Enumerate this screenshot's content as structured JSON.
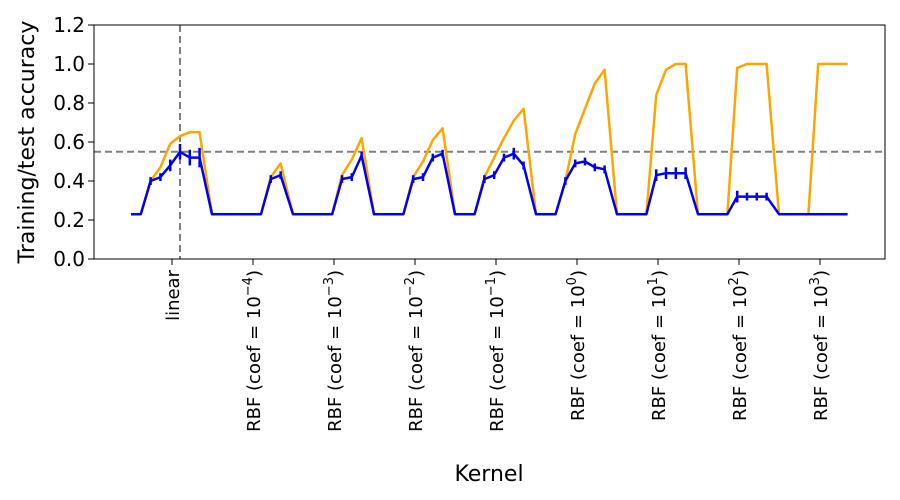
{
  "chart_data": {
    "type": "line",
    "title": "",
    "xlabel": "Kernel",
    "ylabel": "Training/test accuracy",
    "ylim": [
      0.0,
      1.2
    ],
    "yticks": [
      "0.0",
      "0.2",
      "0.4",
      "0.6",
      "0.8",
      "1.0",
      "1.2"
    ],
    "categories": [
      "linear",
      "RBF (coef = 10^-4)",
      "RBF (coef = 10^-3)",
      "RBF (coef = 10^-2)",
      "RBF (coef = 10^-1)",
      "RBF (coef = 10^0)",
      "RBF (coef = 10^1)",
      "RBF (coef = 10^2)",
      "RBF (coef = 10^3)"
    ],
    "category_labels": [
      {
        "base": "linear",
        "exp": ""
      },
      {
        "base": "RBF (coef = 10",
        "exp": "−4",
        "close": ")"
      },
      {
        "base": "RBF (coef = 10",
        "exp": "−3",
        "close": ")"
      },
      {
        "base": "RBF (coef = 10",
        "exp": "−2",
        "close": ")"
      },
      {
        "base": "RBF (coef = 10",
        "exp": "−1",
        "close": ")"
      },
      {
        "base": "RBF (coef = 10",
        "exp": "0",
        "close": ")"
      },
      {
        "base": "RBF (coef = 10",
        "exp": "1",
        "close": ")"
      },
      {
        "base": "RBF (coef = 10",
        "exp": "2",
        "close": ")"
      },
      {
        "base": "RBF (coef = 10",
        "exp": "3",
        "close": ")"
      }
    ],
    "points_per_group": 8,
    "x_range": [
      -1.4,
      8.8
    ],
    "reference_lines": {
      "horizontal_y": 0.55,
      "vertical_x": 0.1
    },
    "series": [
      {
        "color": "#ffa500",
        "values": [
          [
            0.23,
            0.23,
            0.4,
            0.47,
            0.59,
            0.63,
            0.65,
            0.65
          ],
          [
            0.23,
            0.23,
            0.23,
            0.23,
            0.23,
            0.23,
            0.42,
            0.49
          ],
          [
            0.23,
            0.23,
            0.23,
            0.23,
            0.23,
            0.43,
            0.51,
            0.62
          ],
          [
            0.23,
            0.23,
            0.23,
            0.23,
            0.42,
            0.5,
            0.61,
            0.67
          ],
          [
            0.23,
            0.23,
            0.23,
            0.42,
            0.52,
            0.62,
            0.71,
            0.77
          ],
          [
            0.23,
            0.23,
            0.23,
            0.4,
            0.64,
            0.77,
            0.9,
            0.97
          ],
          [
            0.23,
            0.23,
            0.23,
            0.23,
            0.84,
            0.97,
            1.0,
            1.0
          ],
          [
            0.23,
            0.23,
            0.23,
            0.23,
            0.98,
            1.0,
            1.0,
            1.0
          ],
          [
            0.23,
            0.23,
            0.23,
            0.23,
            1.0,
            1.0,
            1.0,
            1.0
          ]
        ]
      },
      {
        "color": "#0000ee",
        "values": [
          [
            0.23,
            0.23,
            0.4,
            0.42,
            0.48,
            0.55,
            0.52,
            0.52
          ],
          [
            0.23,
            0.23,
            0.23,
            0.23,
            0.23,
            0.23,
            0.41,
            0.43
          ],
          [
            0.23,
            0.23,
            0.23,
            0.23,
            0.23,
            0.41,
            0.42,
            0.53
          ],
          [
            0.23,
            0.23,
            0.23,
            0.23,
            0.41,
            0.42,
            0.52,
            0.54
          ],
          [
            0.23,
            0.23,
            0.23,
            0.41,
            0.43,
            0.52,
            0.54,
            0.48
          ],
          [
            0.23,
            0.23,
            0.23,
            0.4,
            0.49,
            0.5,
            0.47,
            0.46
          ],
          [
            0.23,
            0.23,
            0.23,
            0.23,
            0.43,
            0.44,
            0.44,
            0.44
          ],
          [
            0.23,
            0.23,
            0.23,
            0.23,
            0.32,
            0.32,
            0.32,
            0.32
          ],
          [
            0.23,
            0.23,
            0.23,
            0.23,
            0.23,
            0.23,
            0.23,
            0.23
          ]
        ],
        "error": [
          [
            0.0,
            0.0,
            0.02,
            0.02,
            0.03,
            0.04,
            0.04,
            0.05
          ],
          [
            0.0,
            0.0,
            0.0,
            0.0,
            0.0,
            0.0,
            0.02,
            0.02
          ],
          [
            0.0,
            0.0,
            0.0,
            0.0,
            0.0,
            0.02,
            0.02,
            0.02
          ],
          [
            0.0,
            0.0,
            0.0,
            0.0,
            0.02,
            0.02,
            0.02,
            0.02
          ],
          [
            0.0,
            0.0,
            0.0,
            0.02,
            0.02,
            0.02,
            0.03,
            0.02
          ],
          [
            0.0,
            0.0,
            0.0,
            0.02,
            0.02,
            0.02,
            0.02,
            0.02
          ],
          [
            0.0,
            0.0,
            0.0,
            0.0,
            0.03,
            0.03,
            0.03,
            0.03
          ],
          [
            0.0,
            0.0,
            0.0,
            0.0,
            0.03,
            0.02,
            0.02,
            0.02
          ],
          [
            0.0,
            0.0,
            0.0,
            0.0,
            0.0,
            0.0,
            0.0,
            0.0
          ]
        ]
      }
    ]
  }
}
